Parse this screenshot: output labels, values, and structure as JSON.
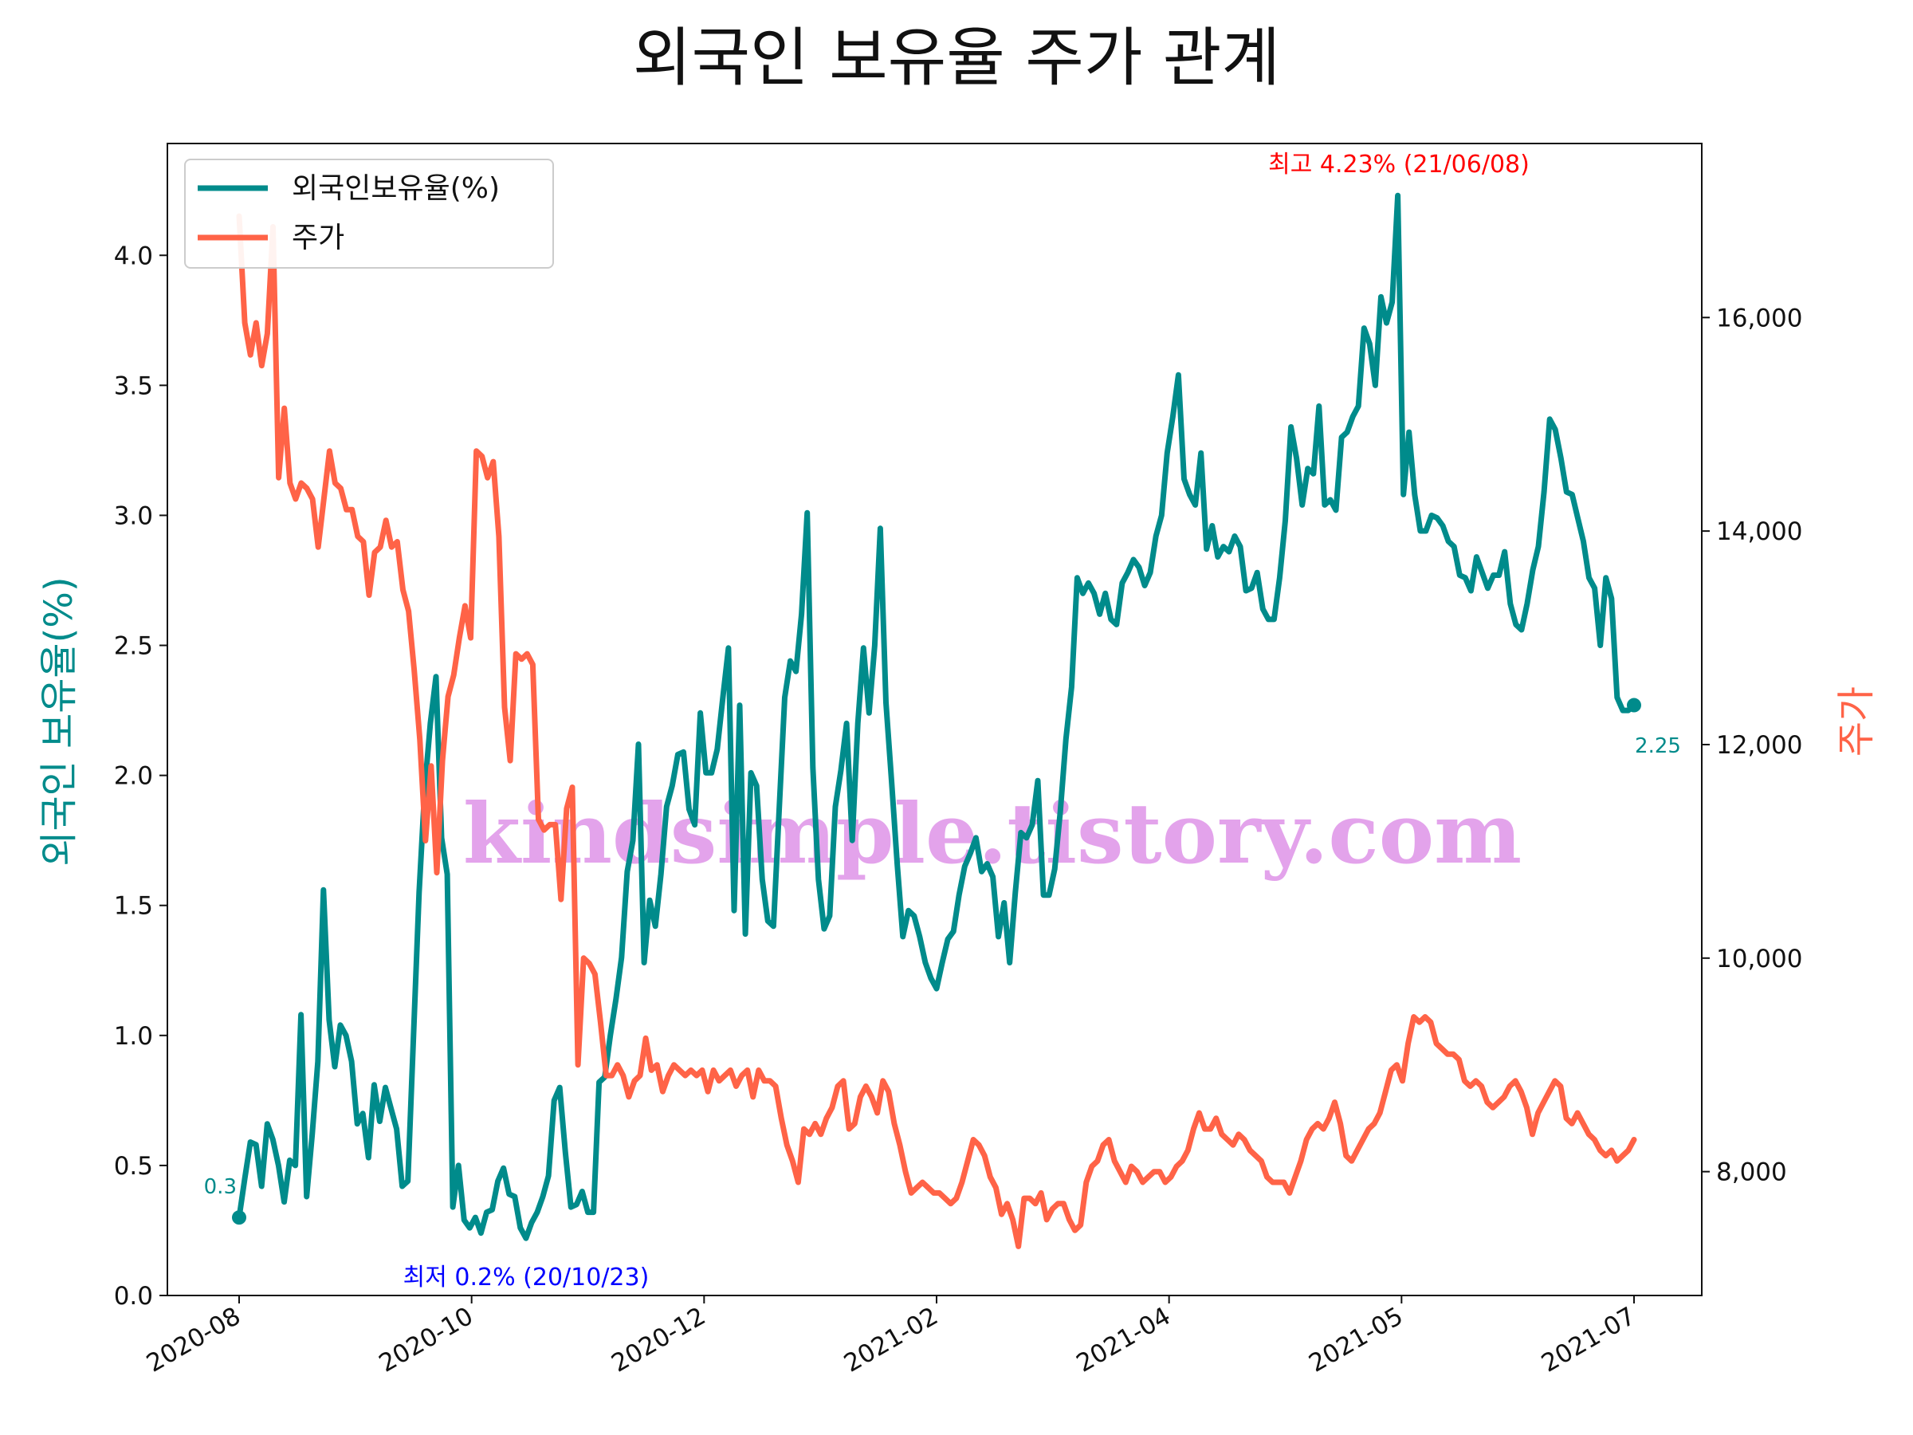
{
  "chart_data": {
    "type": "line",
    "title": "외국인 보유율 주가 관계",
    "ylabel": "외국인 보유율(%)",
    "y2label": "주가",
    "x_ticks": [
      "2020-08",
      "2020-10",
      "2020-12",
      "2021-02",
      "2021-04",
      "2021-05",
      "2021-07"
    ],
    "ylim": [
      0,
      4.43
    ],
    "y_ticks": [
      "0.0",
      "0.5",
      "1.0",
      "1.5",
      "2.0",
      "2.5",
      "3.0",
      "3.5",
      "4.0"
    ],
    "y2lim": [
      6840,
      17630
    ],
    "y2_ticks": [
      "8,000",
      "10,000",
      "12,000",
      "14,000",
      "16,000"
    ],
    "legend_position": "upper-left",
    "watermark": "kindsimple.tistory.com",
    "series": [
      {
        "name": "외국인보유율(%)",
        "axis": "left",
        "color": "#008b8b",
        "values": [
          0.3,
          0.45,
          0.59,
          0.58,
          0.42,
          0.66,
          0.6,
          0.5,
          0.36,
          0.52,
          0.5,
          1.08,
          0.38,
          0.62,
          0.9,
          1.56,
          1.06,
          0.88,
          1.04,
          1.0,
          0.9,
          0.66,
          0.7,
          0.53,
          0.81,
          0.67,
          0.8,
          0.72,
          0.64,
          0.42,
          0.44,
          1.0,
          1.55,
          1.95,
          2.2,
          2.38,
          1.76,
          1.62,
          0.34,
          0.5,
          0.29,
          0.26,
          0.3,
          0.24,
          0.32,
          0.33,
          0.44,
          0.49,
          0.39,
          0.38,
          0.26,
          0.22,
          0.28,
          0.32,
          0.38,
          0.46,
          0.75,
          0.8,
          0.55,
          0.34,
          0.35,
          0.4,
          0.32,
          0.32,
          0.82,
          0.84,
          1.0,
          1.14,
          1.3,
          1.63,
          1.75,
          2.12,
          1.28,
          1.52,
          1.42,
          1.62,
          1.88,
          1.96,
          2.08,
          2.09,
          1.87,
          1.81,
          2.24,
          2.01,
          2.01,
          2.1,
          2.3,
          2.49,
          1.48,
          2.27,
          1.39,
          2.01,
          1.96,
          1.6,
          1.44,
          1.42,
          1.86,
          2.3,
          2.44,
          2.4,
          2.62,
          3.01,
          2.03,
          1.6,
          1.41,
          1.46,
          1.88,
          2.02,
          2.2,
          1.75,
          2.2,
          2.49,
          2.24,
          2.5,
          2.95,
          2.28,
          1.98,
          1.66,
          1.38,
          1.48,
          1.46,
          1.38,
          1.28,
          1.22,
          1.18,
          1.28,
          1.37,
          1.4,
          1.54,
          1.65,
          1.7,
          1.76,
          1.63,
          1.66,
          1.61,
          1.38,
          1.51,
          1.28,
          1.55,
          1.78,
          1.76,
          1.81,
          1.98,
          1.54,
          1.54,
          1.64,
          1.86,
          2.14,
          2.34,
          2.76,
          2.7,
          2.74,
          2.7,
          2.62,
          2.7,
          2.6,
          2.58,
          2.74,
          2.78,
          2.83,
          2.8,
          2.73,
          2.78,
          2.92,
          3.0,
          3.24,
          3.38,
          3.54,
          3.14,
          3.08,
          3.04,
          3.24,
          2.87,
          2.96,
          2.84,
          2.88,
          2.86,
          2.92,
          2.88,
          2.71,
          2.72,
          2.78,
          2.64,
          2.6,
          2.6,
          2.76,
          2.98,
          3.34,
          3.22,
          3.04,
          3.18,
          3.16,
          3.42,
          3.04,
          3.06,
          3.02,
          3.3,
          3.32,
          3.38,
          3.42,
          3.72,
          3.66,
          3.5,
          3.84,
          3.74,
          3.82,
          4.23,
          3.08,
          3.32,
          3.08,
          2.94,
          2.94,
          3.0,
          2.99,
          2.96,
          2.9,
          2.88,
          2.77,
          2.76,
          2.71,
          2.84,
          2.78,
          2.72,
          2.77,
          2.77,
          2.86,
          2.66,
          2.58,
          2.56,
          2.66,
          2.79,
          2.88,
          3.09,
          3.37,
          3.33,
          3.22,
          3.09,
          3.08,
          2.99,
          2.9,
          2.76,
          2.72,
          2.5,
          2.76,
          2.68,
          2.3,
          2.25,
          2.25,
          2.27
        ],
        "start_label": "0.3",
        "end_label": "2.25"
      },
      {
        "name": "주가",
        "axis": "right",
        "color": "#ff6347",
        "values": [
          16950,
          15950,
          15650,
          15950,
          15550,
          15850,
          16850,
          14500,
          15150,
          14450,
          14300,
          14450,
          14400,
          14300,
          13850,
          14300,
          14750,
          14450,
          14400,
          14200,
          14200,
          13950,
          13900,
          13400,
          13800,
          13850,
          14100,
          13850,
          13900,
          13450,
          13250,
          12700,
          12050,
          11100,
          11800,
          10800,
          11850,
          12450,
          12650,
          13000,
          13300,
          13000,
          14750,
          14700,
          14500,
          14650,
          13950,
          12350,
          11850,
          12850,
          12800,
          12850,
          12750,
          11300,
          11200,
          11250,
          11250,
          10550,
          11400,
          11600,
          9000,
          10000,
          9950,
          9850,
          9400,
          8900,
          8900,
          9000,
          8900,
          8700,
          8850,
          8900,
          9250,
          8950,
          9000,
          8750,
          8900,
          9000,
          8950,
          8900,
          8950,
          8900,
          8950,
          8750,
          8950,
          8850,
          8900,
          8950,
          8800,
          8900,
          8950,
          8700,
          8950,
          8850,
          8850,
          8800,
          8500,
          8250,
          8100,
          7900,
          8400,
          8350,
          8450,
          8350,
          8500,
          8600,
          8800,
          8850,
          8400,
          8450,
          8700,
          8800,
          8700,
          8550,
          8850,
          8750,
          8450,
          8250,
          8000,
          7800,
          7850,
          7900,
          7850,
          7800,
          7800,
          7750,
          7700,
          7750,
          7900,
          8100,
          8300,
          8250,
          8150,
          7950,
          7850,
          7600,
          7700,
          7550,
          7300,
          7750,
          7750,
          7700,
          7800,
          7550,
          7650,
          7700,
          7700,
          7550,
          7450,
          7500,
          7900,
          8050,
          8100,
          8250,
          8300,
          8100,
          8000,
          7900,
          8050,
          8000,
          7900,
          7950,
          8000,
          8000,
          7900,
          7950,
          8050,
          8100,
          8200,
          8400,
          8550,
          8400,
          8400,
          8500,
          8350,
          8300,
          8250,
          8350,
          8300,
          8200,
          8150,
          8100,
          7950,
          7900,
          7900,
          7900,
          7800,
          7950,
          8100,
          8300,
          8400,
          8450,
          8400,
          8500,
          8650,
          8450,
          8150,
          8100,
          8200,
          8300,
          8400,
          8450,
          8550,
          8750,
          8950,
          9000,
          8850,
          9200,
          9450,
          9400,
          9450,
          9400,
          9200,
          9150,
          9100,
          9100,
          9050,
          8850,
          8800,
          8850,
          8800,
          8650,
          8600,
          8650,
          8700,
          8800,
          8850,
          8750,
          8600,
          8350,
          8550,
          8650,
          8750,
          8850,
          8800,
          8500,
          8450,
          8550,
          8450,
          8350,
          8300,
          8200,
          8150,
          8200,
          8100,
          8150,
          8200,
          8300
        ]
      }
    ],
    "annotations": {
      "max": "최고 4.23% (21/06/08)",
      "min": "최저 0.2% (20/10/23)"
    }
  }
}
